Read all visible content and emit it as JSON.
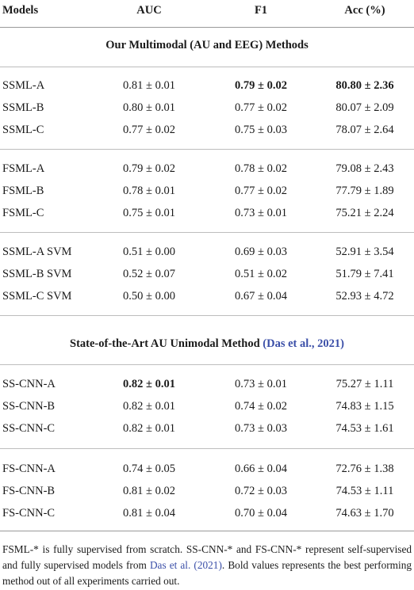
{
  "headers": [
    "Models",
    "AUC",
    "F1",
    "Acc (%)"
  ],
  "section1_title": "Our Multimodal (AU and EEG) Methods",
  "section2_title_pre": "State-of-the-Art AU Unimodal Method",
  "section2_cite": "(Das et al., 2021)",
  "groups": [
    {
      "rows": [
        {
          "model": "SSML-A",
          "auc": "0.81 ± 0.01",
          "f1": "0.79 ± 0.02",
          "acc": "80.80 ± 2.36"
        },
        {
          "model": "SSML-B",
          "auc": "0.80 ± 0.01",
          "f1": "0.77 ± 0.02",
          "acc": "80.07 ± 2.09"
        },
        {
          "model": "SSML-C",
          "auc": "0.77 ± 0.02",
          "f1": "0.75 ± 0.03",
          "acc": "78.07 ± 2.64"
        }
      ]
    },
    {
      "rows": [
        {
          "model": "FSML-A",
          "auc": "0.79 ± 0.02",
          "f1": "0.78 ± 0.02",
          "acc": "79.08 ± 2.43"
        },
        {
          "model": "FSML-B",
          "auc": "0.78 ± 0.01",
          "f1": "0.77 ± 0.02",
          "acc": "77.79 ± 1.89"
        },
        {
          "model": "FSML-C",
          "auc": "0.75 ± 0.01",
          "f1": "0.73 ± 0.01",
          "acc": "75.21 ± 2.24"
        }
      ]
    },
    {
      "rows": [
        {
          "model": "SSML-A SVM",
          "auc": "0.51 ± 0.00",
          "f1": "0.69 ± 0.03",
          "acc": "52.91 ± 3.54"
        },
        {
          "model": "SSML-B SVM",
          "auc": "0.52 ± 0.07",
          "f1": "0.51 ± 0.02",
          "acc": "51.79 ± 7.41"
        },
        {
          "model": "SSML-C SVM",
          "auc": "0.50 ± 0.00",
          "f1": "0.67 ± 0.04",
          "acc": "52.93 ± 4.72"
        }
      ]
    },
    {
      "rows": [
        {
          "model": "SS-CNN-A",
          "auc": "0.82 ± 0.01",
          "f1": "0.73 ± 0.01",
          "acc": "75.27 ± 1.11"
        },
        {
          "model": "SS-CNN-B",
          "auc": "0.82 ± 0.01",
          "f1": "0.74 ± 0.02",
          "acc": "74.83 ± 1.15"
        },
        {
          "model": "SS-CNN-C",
          "auc": "0.82 ± 0.01",
          "f1": "0.73 ± 0.03",
          "acc": "74.53 ± 1.61"
        }
      ]
    },
    {
      "rows": [
        {
          "model": "FS-CNN-A",
          "auc": "0.74 ± 0.05",
          "f1": "0.66 ± 0.04",
          "acc": "72.76 ± 1.38"
        },
        {
          "model": "FS-CNN-B",
          "auc": "0.81 ± 0.02",
          "f1": "0.72 ± 0.03",
          "acc": "74.53 ± 1.11"
        },
        {
          "model": "FS-CNN-C",
          "auc": "0.81 ± 0.04",
          "f1": "0.70 ± 0.04",
          "acc": "74.63 ± 1.70"
        }
      ]
    }
  ],
  "footnote": {
    "part1": "FSML-* is fully supervised from scratch. SS-CNN-* and FS-CNN-* represent self-supervised and fully supervised models from ",
    "cite": "Das et al. (2021)",
    "part2": ". Bold values represents the best performing method out of all experiments carried out."
  }
}
